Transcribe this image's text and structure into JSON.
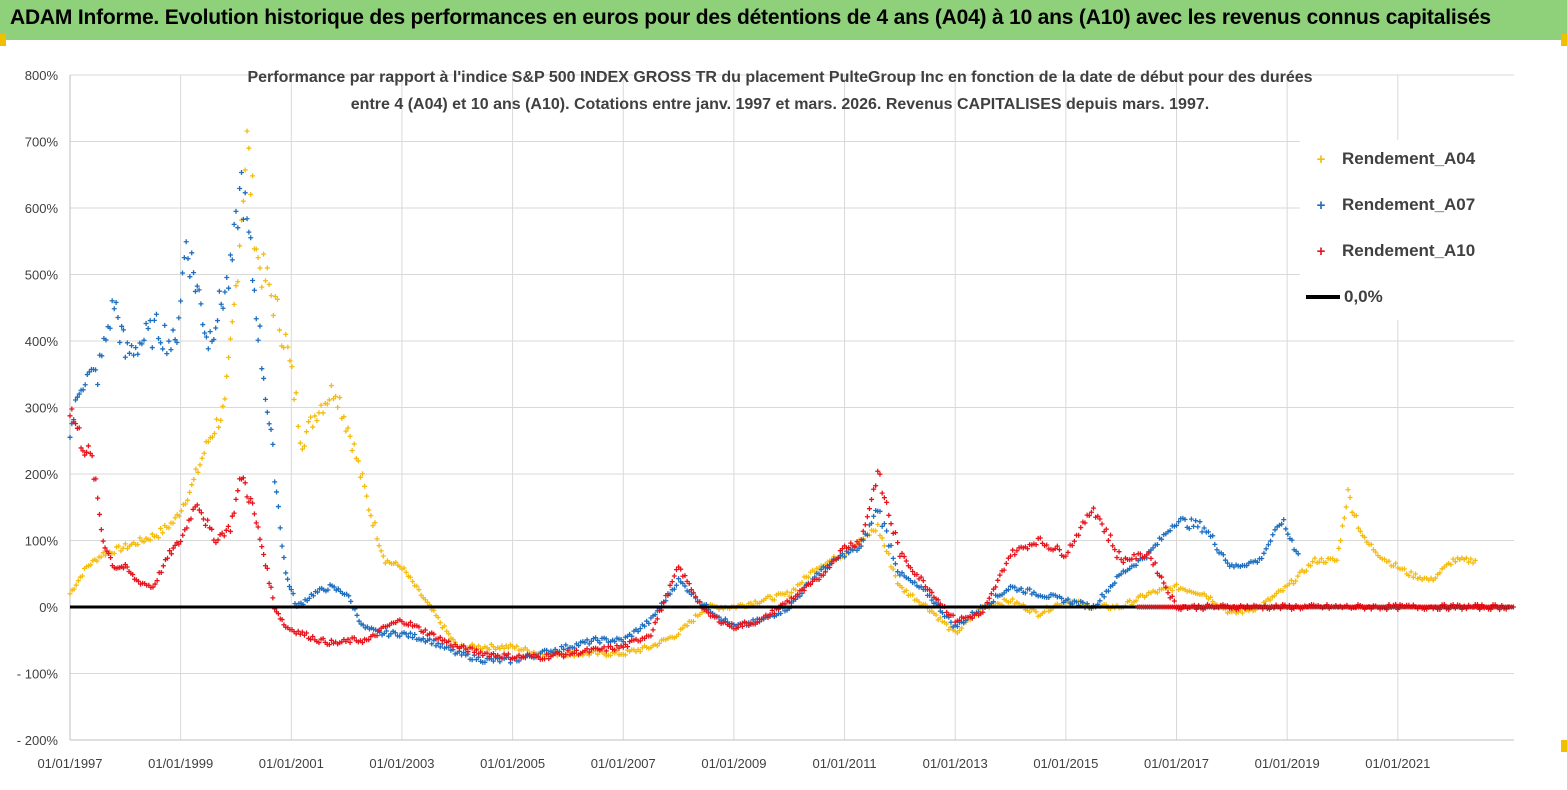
{
  "banner": {
    "title": "ADAM Informe. Evolution historique des performances en euros pour des détentions de 4 ans (A04) à 10 ans (A10) avec les revenus connus capitalisés"
  },
  "chart": {
    "subtitle_line1": "Performance par rapport à l'indice S&P 500 INDEX GROSS TR  du placement PulteGroup Inc en fonction de la date de début pour des durées",
    "subtitle_line2": "entre 4 (A04) et 10 ans (A10). Cotations entre janv. 1997 et mars. 2026. Revenus CAPITALISES depuis mars. 1997."
  },
  "legend": {
    "items": [
      {
        "label": "Rendement_A04",
        "symbol": "+",
        "color": "#f5bc10"
      },
      {
        "label": "Rendement_A07",
        "symbol": "+",
        "color": "#1e6fbf"
      },
      {
        "label": "Rendement_A10",
        "symbol": "+",
        "color": "#e8141c"
      },
      {
        "label": "0,0%",
        "symbol": "line",
        "color": "#000000"
      }
    ]
  },
  "colors": {
    "banner": "#8fd07a",
    "a04": "#f5bc10",
    "a07": "#1e6fbf",
    "a10": "#e8141c",
    "zero": "#000000",
    "grid": "#d9d9d9"
  },
  "chart_data": {
    "type": "scatter",
    "title": "Performance par rapport à l'indice S&P 500 INDEX GROSS TR du placement PulteGroup Inc en fonction de la date de début pour des durées entre 4 (A04) et 10 ans (A10). Cotations entre janv. 1997 et mars. 2026. Revenus CAPITALISES depuis mars. 1997.",
    "xlabel": "",
    "ylabel": "",
    "x_range": [
      1997.0,
      2023.1
    ],
    "ylim": [
      -200,
      800
    ],
    "y_ticks": [
      -200,
      -100,
      0,
      100,
      200,
      300,
      400,
      500,
      600,
      700,
      800
    ],
    "y_tick_labels": [
      "- 200%",
      "- 100%",
      "0%",
      "100%",
      "200%",
      "300%",
      "400%",
      "500%",
      "600%",
      "700%",
      "800%"
    ],
    "x_ticks": [
      1997,
      1999,
      2001,
      2003,
      2005,
      2007,
      2009,
      2011,
      2013,
      2015,
      2017,
      2019,
      2021
    ],
    "x_tick_labels": [
      "01/01/1997",
      "01/01/1999",
      "01/01/2001",
      "01/01/2003",
      "01/01/2005",
      "01/01/2007",
      "01/01/2009",
      "01/01/2011",
      "01/01/2013",
      "01/01/2015",
      "01/01/2017",
      "01/01/2019",
      "01/01/2021"
    ],
    "legend_position": "top-right",
    "grid": true,
    "series": [
      {
        "name": "Rendement_A04",
        "x": [
          1997.0,
          1997.3,
          1997.6,
          1998.0,
          1998.3,
          1998.6,
          1998.9,
          1999.2,
          1999.5,
          1999.8,
          2000.0,
          2000.2,
          2000.4,
          2000.6,
          2000.9,
          2001.2,
          2001.5,
          2001.8,
          2002.1,
          2002.4,
          2002.7,
          2003.0,
          2003.5,
          2004.0,
          2004.5,
          2005.0,
          2005.5,
          2006.0,
          2006.5,
          2007.0,
          2007.5,
          2008.0,
          2008.5,
          2009.0,
          2009.5,
          2010.0,
          2010.5,
          2011.0,
          2011.3,
          2011.6,
          2012.0,
          2012.5,
          2013.0,
          2013.5,
          2014.0,
          2014.5,
          2015.0,
          2015.5,
          2016.0,
          2016.5,
          2017.0,
          2017.5,
          2018.0,
          2018.5,
          2019.0,
          2019.5,
          2019.9,
          2020.1,
          2020.4,
          2020.8,
          2021.2,
          2021.6,
          2022.0,
          2022.4
        ],
        "y": [
          20,
          60,
          80,
          90,
          100,
          110,
          130,
          180,
          250,
          300,
          480,
          700,
          520,
          480,
          400,
          250,
          300,
          330,
          250,
          150,
          70,
          60,
          0,
          -60,
          -60,
          -60,
          -70,
          -70,
          -70,
          -70,
          -60,
          -40,
          0,
          0,
          10,
          20,
          60,
          80,
          100,
          120,
          30,
          0,
          -40,
          0,
          10,
          -10,
          10,
          0,
          0,
          20,
          30,
          20,
          -10,
          0,
          30,
          70,
          70,
          170,
          100,
          70,
          50,
          40,
          70,
          70
        ]
      },
      {
        "name": "Rendement_A07",
        "x": [
          1997.0,
          1997.2,
          1997.5,
          1997.8,
          1998.0,
          1998.3,
          1998.6,
          1998.9,
          1999.1,
          1999.3,
          1999.5,
          1999.7,
          1999.9,
          2000.1,
          2000.3,
          2000.5,
          2000.7,
          2000.9,
          2001.1,
          2001.4,
          2001.7,
          2002.0,
          2002.3,
          2002.6,
          2003.0,
          2003.5,
          2004.0,
          2004.5,
          2005.0,
          2005.5,
          2006.0,
          2006.5,
          2007.0,
          2007.5,
          2008.0,
          2008.5,
          2009.0,
          2009.5,
          2010.0,
          2010.5,
          2011.0,
          2011.3,
          2011.6,
          2012.0,
          2012.5,
          2013.0,
          2013.5,
          2014.0,
          2014.5,
          2015.0,
          2015.5,
          2016.0,
          2016.5,
          2017.0,
          2017.5,
          2018.0,
          2018.5,
          2018.9,
          2019.2
        ],
        "y": [
          260,
          340,
          350,
          460,
          380,
          400,
          420,
          390,
          550,
          480,
          400,
          450,
          500,
          640,
          500,
          350,
          200,
          50,
          0,
          20,
          30,
          20,
          -30,
          -40,
          -40,
          -50,
          -70,
          -80,
          -80,
          -70,
          -60,
          -50,
          -50,
          -20,
          40,
          0,
          -30,
          -20,
          0,
          50,
          80,
          90,
          150,
          50,
          20,
          -30,
          0,
          30,
          20,
          10,
          0,
          50,
          80,
          130,
          120,
          60,
          70,
          130,
          80
        ]
      },
      {
        "name": "Rendement_A10",
        "x": [
          1997.0,
          1997.2,
          1997.4,
          1997.6,
          1997.8,
          1998.0,
          1998.2,
          1998.5,
          1998.8,
          1999.0,
          1999.3,
          1999.6,
          1999.9,
          2000.1,
          2000.3,
          2000.5,
          2000.7,
          2000.9,
          2001.2,
          2001.5,
          2001.8,
          2002.1,
          2002.4,
          2002.7,
          2003.0,
          2003.5,
          2004.0,
          2004.5,
          2005.0,
          2005.5,
          2006.0,
          2006.5,
          2007.0,
          2007.5,
          2008.0,
          2008.5,
          2009.0,
          2009.5,
          2010.0,
          2010.5,
          2011.0,
          2011.3,
          2011.6,
          2012.0,
          2012.5,
          2013.0,
          2013.5,
          2014.0,
          2014.5,
          2015.0,
          2015.5,
          2016.0,
          2016.5,
          2017.0,
          2018.0,
          2019.0,
          2020.0,
          2021.0,
          2022.0,
          2023.0
        ],
        "y": [
          300,
          250,
          220,
          100,
          60,
          60,
          40,
          30,
          80,
          100,
          160,
          100,
          120,
          200,
          150,
          80,
          0,
          -30,
          -40,
          -50,
          -55,
          -50,
          -50,
          -30,
          -20,
          -40,
          -60,
          -70,
          -75,
          -75,
          -70,
          -65,
          -60,
          -40,
          60,
          -10,
          -30,
          -20,
          10,
          40,
          90,
          100,
          200,
          80,
          30,
          -20,
          -10,
          80,
          100,
          80,
          150,
          70,
          80,
          0,
          0,
          0,
          0,
          0,
          0,
          0
        ]
      }
    ],
    "reference_line": {
      "name": "0,0%",
      "y": 0
    }
  }
}
